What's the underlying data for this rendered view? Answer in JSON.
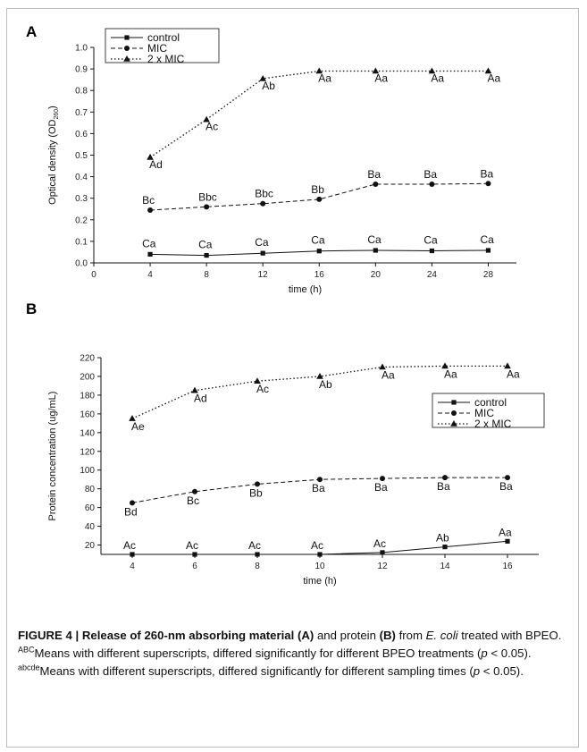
{
  "chart_data": [
    {
      "panel_label": "A",
      "type": "line",
      "xlabel": "time (h)",
      "ylabel": "Optical density (OD",
      "ylabel_sub": "260",
      "ylabel_close": ")",
      "xlim": [
        0,
        30
      ],
      "ylim": [
        0.0,
        1.0
      ],
      "xticks": [
        0,
        4,
        8,
        12,
        16,
        20,
        24,
        28
      ],
      "yticks": [
        "0.0",
        "0.1",
        "0.2",
        "0.3",
        "0.4",
        "0.5",
        "0.6",
        "0.7",
        "0.8",
        "0.9",
        "1.0"
      ],
      "x": [
        4,
        8,
        12,
        16,
        20,
        24,
        28
      ],
      "legend_position": "top-left",
      "series": [
        {
          "name": "control",
          "line_style": "solid",
          "marker": "square",
          "values": [
            0.04,
            0.035,
            0.045,
            0.055,
            0.058,
            0.056,
            0.058
          ],
          "point_labels": [
            "Ca",
            "Ca",
            "Ca",
            "Ca",
            "Ca",
            "Ca",
            "Ca"
          ]
        },
        {
          "name": "MIC",
          "line_style": "dashed",
          "marker": "circle",
          "values": [
            0.245,
            0.26,
            0.275,
            0.295,
            0.365,
            0.365,
            0.368
          ],
          "point_labels": [
            "Bc",
            "Bbc",
            "Bbc",
            "Bb",
            "Ba",
            "Ba",
            "Ba"
          ]
        },
        {
          "name": "2 x MIC",
          "line_style": "dotted",
          "marker": "triangle",
          "values": [
            0.49,
            0.665,
            0.855,
            0.89,
            0.89,
            0.89,
            0.89
          ],
          "point_labels": [
            "Ad",
            "Ac",
            "Ab",
            "Aa",
            "Aa",
            "Aa",
            "Aa"
          ]
        }
      ]
    },
    {
      "panel_label": "B",
      "type": "line",
      "xlabel": "time (h)",
      "ylabel": "Protein concentration (ug/mL)",
      "xlim": [
        3,
        17
      ],
      "ylim": [
        10,
        220
      ],
      "xticks": [
        4,
        6,
        8,
        10,
        12,
        14,
        16
      ],
      "yticks": [
        "20",
        "40",
        "60",
        "80",
        "100",
        "120",
        "140",
        "160",
        "180",
        "200",
        "220"
      ],
      "x": [
        4,
        6,
        8,
        10,
        12,
        14,
        16
      ],
      "legend_position": "right",
      "series": [
        {
          "name": "control",
          "line_style": "solid",
          "marker": "square",
          "values": [
            10,
            10,
            10,
            10,
            12,
            18,
            24
          ],
          "point_labels": [
            "Ac",
            "Ac",
            "Ac",
            "Ac",
            "Ac",
            "Ab",
            "Aa"
          ]
        },
        {
          "name": "MIC",
          "line_style": "dashed",
          "marker": "circle",
          "values": [
            65,
            77,
            85,
            90,
            91,
            92,
            92
          ],
          "point_labels": [
            "Bd",
            "Bc",
            "Bb",
            "Ba",
            "Ba",
            "Ba",
            "Ba"
          ]
        },
        {
          "name": "2 x MIC",
          "line_style": "dotted",
          "marker": "triangle",
          "values": [
            155,
            185,
            195,
            200,
            210,
            211,
            211
          ],
          "point_labels": [
            "Ae",
            "Ad",
            "Ac",
            "Ab",
            "Aa",
            "Aa",
            "Aa"
          ]
        }
      ]
    }
  ],
  "caption": {
    "figure_label": "FIGURE 4 | Release of 260-nm absorbing material ",
    "label_a": "(A)",
    "mid_1": " and protein ",
    "label_b": "(B)",
    "line_2_start": "from ",
    "organism": "E. coli",
    "line_2_end": " treated with BPEO. ",
    "sup_1": "ABC",
    "note_1": "Means with different superscripts, differed significantly for different BPEO treatments (",
    "p_symbol": "p",
    "p_value": " < 0.05). ",
    "sup_2": "abcde",
    "note_2": "Means with different superscripts, differed significantly for different sampling times (",
    "p_symbol_2": "p",
    "p_value_2": " < 0.05)."
  }
}
